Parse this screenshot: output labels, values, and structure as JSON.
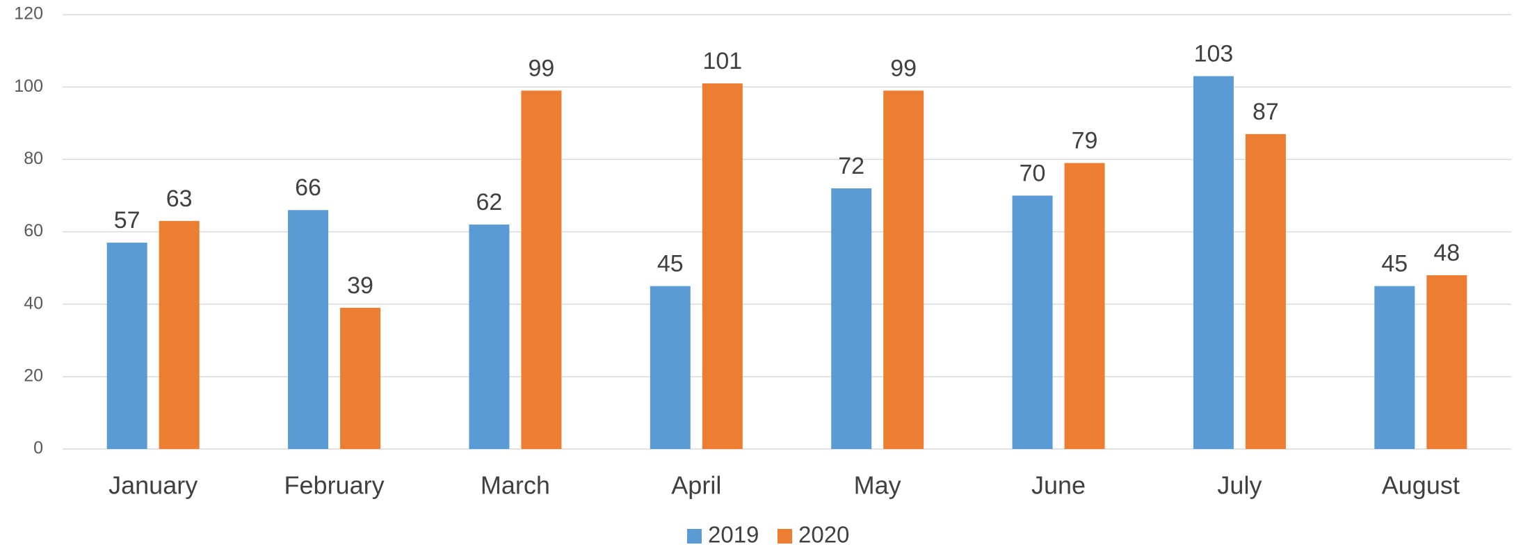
{
  "chart_data": {
    "type": "bar",
    "categories": [
      "January",
      "February",
      "March",
      "April",
      "May",
      "June",
      "July",
      "August"
    ],
    "series": [
      {
        "name": "2019",
        "color": "#5b9bd5",
        "values": [
          57,
          66,
          62,
          45,
          72,
          70,
          103,
          45
        ]
      },
      {
        "name": "2020",
        "color": "#ed7d31",
        "values": [
          63,
          39,
          99,
          101,
          99,
          79,
          87,
          48
        ]
      }
    ],
    "ylim": [
      0,
      120
    ],
    "yticks": [
      0,
      20,
      40,
      60,
      80,
      100,
      120
    ],
    "grid": true,
    "legend": "bottom"
  }
}
